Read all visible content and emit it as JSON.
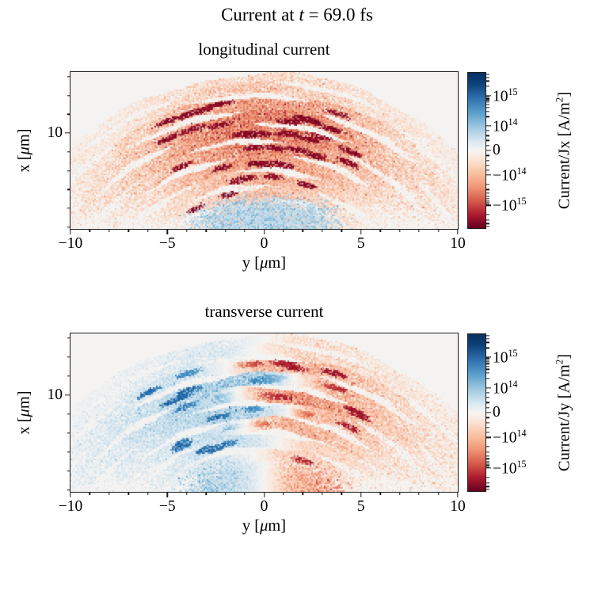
{
  "figure_title_parts": [
    {
      "t": "Current at "
    },
    {
      "t": "t",
      "i": true
    },
    {
      "t": " = 69.0 fs"
    }
  ],
  "chart_data": {
    "type": "heatmap",
    "title": "Current at t = 69.0 fs",
    "time_fs": 69.0,
    "panels": [
      {
        "title": "longitudinal current",
        "mode": "jx",
        "colorbar_label": "Current/Jx [A/m^2]",
        "colorbar_label_parts": [
          {
            "t": "Current/Jx [A/m"
          },
          {
            "t": "2",
            "sup": true
          },
          {
            "t": "]"
          }
        ],
        "description": "dome of concentric speckled arc filaments, almost entirely negative (red/dark red), densest dark-red chaotic band near top center; weak positive (light blue) speckle cloud along the bottom center"
      },
      {
        "title": "transverse current",
        "mode": "jy",
        "colorbar_label": "Current/Jy [A/m^2]",
        "colorbar_label_parts": [
          {
            "t": "Current/Jy [A/m"
          },
          {
            "t": "2",
            "sup": true
          },
          {
            "t": "]"
          }
        ],
        "description": "same dome of arcs but antisymmetric: positive (blue) for y<0, negative (red) for y>0, with interleaved red/blue bands near the axis and apex; bottom speckle blue on left, red on right"
      }
    ],
    "xaxis": {
      "label": "y [μm]",
      "label_parts": [
        {
          "t": "y ["
        },
        {
          "t": "μ",
          "i": true
        },
        {
          "t": "m]"
        }
      ],
      "range": [
        -10,
        10
      ],
      "major": {
        "values": [
          -10,
          -5,
          0,
          5,
          10
        ],
        "fracs": [
          0,
          0.25,
          0.5,
          0.75,
          1
        ],
        "labels": [
          "−10",
          "−5",
          "0",
          "5",
          "10"
        ]
      },
      "minor_fracs": [
        0.05,
        0.1,
        0.15,
        0.2,
        0.3,
        0.35,
        0.4,
        0.45,
        0.55,
        0.6,
        0.65,
        0.7,
        0.8,
        0.85,
        0.9,
        0.95
      ]
    },
    "yaxis": {
      "label": "x [μm]",
      "label_parts": [
        {
          "t": "x ["
        },
        {
          "t": "μ",
          "i": true
        },
        {
          "t": "m]"
        }
      ],
      "range": [
        4.9,
        13.25
      ],
      "major": {
        "values": [
          10
        ],
        "fracs": [
          0.389
        ],
        "labels": [
          "10"
        ]
      },
      "minor_fracs": [
        0.03,
        0.15,
        0.269,
        0.509,
        0.629,
        0.749,
        0.868,
        0.988
      ]
    },
    "colorbar": {
      "scale": "symlog",
      "colormap": "RdBu",
      "units": "A/m^2",
      "major": {
        "fracs": [
          0.146,
          0.341,
          0.5,
          0.659,
          0.854
        ],
        "labels": [
          "10^15",
          "10^14",
          "0",
          "−10^14",
          "−10^15"
        ]
      },
      "minor_fracs": [
        0.01,
        0.029,
        0.053,
        0.087,
        0.154,
        0.165,
        0.176,
        0.189,
        0.205,
        0.224,
        0.248,
        0.282,
        0.373,
        0.405,
        0.436,
        0.468,
        0.532,
        0.564,
        0.595,
        0.627,
        0.718,
        0.752,
        0.776,
        0.795,
        0.811,
        0.824,
        0.835,
        0.846,
        0.913,
        0.947,
        0.971,
        0.99
      ],
      "gradient": [
        [
          0,
          "#053061"
        ],
        [
          0.07,
          "#0e4178"
        ],
        [
          0.16,
          "#2e6eab"
        ],
        [
          0.26,
          "#5da0cb"
        ],
        [
          0.35,
          "#9ec8e0"
        ],
        [
          0.44,
          "#d9e8f1"
        ],
        [
          0.5,
          "#f7f5f3"
        ],
        [
          0.56,
          "#fbe3d4"
        ],
        [
          0.65,
          "#f9c0a0"
        ],
        [
          0.74,
          "#ee9372"
        ],
        [
          0.83,
          "#d25849"
        ],
        [
          0.91,
          "#b01c2e"
        ],
        [
          1,
          "#67001f"
        ]
      ]
    },
    "render": {
      "seed": 20,
      "bg": "#f4f3f1",
      "center": {
        "y": 0.0,
        "x": -1.2
      },
      "jy_damp": 0.9,
      "cmap": [
        [
          -1,
          "#67001f"
        ],
        [
          -0.82,
          "#9c0e27"
        ],
        [
          -0.62,
          "#c13639"
        ],
        [
          -0.42,
          "#df6f54"
        ],
        [
          -0.26,
          "#f3a17e"
        ],
        [
          -0.12,
          "#fbd7c3"
        ],
        [
          0,
          "#f7f4f1"
        ],
        [
          0.12,
          "#d8e7f1"
        ],
        [
          0.26,
          "#abd0e4"
        ],
        [
          0.42,
          "#7ab4d5"
        ],
        [
          0.62,
          "#4291c3"
        ],
        [
          0.82,
          "#2065a8"
        ],
        [
          1,
          "#053061"
        ]
      ],
      "shells": [
        {
          "r": 14.15,
          "w": 0.26,
          "spread": 80,
          "n": 2600,
          "amp": 0.3,
          "jy_shift": 0
        },
        {
          "r": 13.55,
          "w": 0.28,
          "spread": 76,
          "n": 3200,
          "amp": 0.38,
          "jy_shift": 0.5
        },
        {
          "r": 12.85,
          "w": 0.32,
          "spread": 68,
          "n": 5200,
          "amp": 0.62,
          "jy_shift": 2.0,
          "clumps": 6
        },
        {
          "r": 12.05,
          "w": 0.34,
          "spread": 62,
          "n": 6200,
          "amp": 0.8,
          "jy_shift": -1.6,
          "clumps": 7
        },
        {
          "r": 11.25,
          "w": 0.34,
          "spread": 57,
          "n": 6200,
          "amp": 0.84,
          "jy_shift": 1.4,
          "clumps": 7
        },
        {
          "r": 10.45,
          "w": 0.34,
          "spread": 52,
          "n": 5600,
          "amp": 0.74,
          "jy_shift": -1.2,
          "clumps": 6
        },
        {
          "r": 9.65,
          "w": 0.32,
          "spread": 48,
          "n": 4800,
          "amp": 0.62,
          "jy_shift": 1.0,
          "clumps": 5
        },
        {
          "r": 8.85,
          "w": 0.32,
          "spread": 45,
          "n": 3800,
          "amp": 0.5,
          "jy_shift": -0.8,
          "clumps": 4
        },
        {
          "r": 8.05,
          "w": 0.3,
          "spread": 43,
          "n": 2800,
          "amp": 0.4,
          "jy_shift": 0.6,
          "clumps": 2
        },
        {
          "r": 7.25,
          "w": 0.3,
          "spread": 40,
          "n": 2000,
          "amp": 0.3,
          "jy_shift": -0.4
        },
        {
          "r": 6.45,
          "w": 0.28,
          "spread": 38,
          "n": 1300,
          "amp": 0.22,
          "jy_shift": 0.2
        }
      ],
      "dust": {
        "n": 7500,
        "spread": 72,
        "r_min": 5.4,
        "r_span": 8.8
      },
      "cloud": {
        "n": 9500,
        "y_sigma": 3.0,
        "x_base": 4.9,
        "x_decay": 1.3,
        "amp": 0.5
      }
    }
  }
}
